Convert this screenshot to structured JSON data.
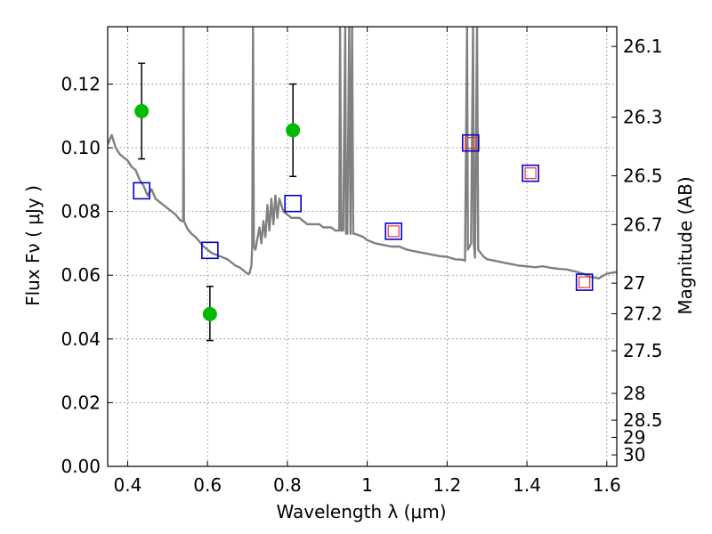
{
  "chart_data": {
    "type": "scatter",
    "xlabel": "Wavelength  λ (μm)",
    "ylabel": "Flux  Fν  ( μJy )",
    "ylabel_right": "Magnitude (AB)",
    "xlim": [
      0.35,
      1.625
    ],
    "ylim": [
      0.0,
      0.138
    ],
    "grid": true,
    "x_ticks": [
      0.4,
      0.6,
      0.8,
      1.0,
      1.2,
      1.4,
      1.6
    ],
    "x_tick_labels": [
      "0.4",
      "0.6",
      "0.8",
      "1",
      "1.2",
      "1.4",
      "1.6"
    ],
    "y_ticks": [
      0.0,
      0.02,
      0.04,
      0.06,
      0.08,
      0.1,
      0.12
    ],
    "y_tick_labels": [
      "0.00",
      "0.02",
      "0.04",
      "0.06",
      "0.08",
      "0.10",
      "0.12"
    ],
    "mag_ticks": [
      {
        "label": "26.1",
        "flux": 0.1318
      },
      {
        "label": "26.3",
        "flux": 0.1096
      },
      {
        "label": "26.5",
        "flux": 0.0912
      },
      {
        "label": "26.7",
        "flux": 0.0759
      },
      {
        "label": "27",
        "flux": 0.0575
      },
      {
        "label": "27.2",
        "flux": 0.0479
      },
      {
        "label": "27.5",
        "flux": 0.0363
      },
      {
        "label": "28",
        "flux": 0.0229
      },
      {
        "label": "28.5",
        "flux": 0.0145
      },
      {
        "label": "29",
        "flux": 0.0091
      },
      {
        "label": "30",
        "flux": 0.0036
      }
    ],
    "series": [
      {
        "kind": "model-spectrum",
        "color": "#808080",
        "points": [
          [
            0.35,
            0.101
          ],
          [
            0.36,
            0.104
          ],
          [
            0.37,
            0.1
          ],
          [
            0.38,
            0.098
          ],
          [
            0.39,
            0.097
          ],
          [
            0.4,
            0.096
          ],
          [
            0.41,
            0.094
          ],
          [
            0.42,
            0.093
          ],
          [
            0.43,
            0.09
          ],
          [
            0.44,
            0.088
          ],
          [
            0.45,
            0.085
          ],
          [
            0.46,
            0.087
          ],
          [
            0.47,
            0.084
          ],
          [
            0.48,
            0.083
          ],
          [
            0.49,
            0.082
          ],
          [
            0.5,
            0.081
          ],
          [
            0.51,
            0.08
          ],
          [
            0.52,
            0.079
          ],
          [
            0.53,
            0.0775
          ],
          [
            0.535,
            0.077
          ],
          [
            0.539,
            0.077
          ],
          [
            0.54,
            0.138
          ],
          [
            0.541,
            0.077
          ],
          [
            0.55,
            0.0745
          ],
          [
            0.56,
            0.073
          ],
          [
            0.57,
            0.072
          ],
          [
            0.58,
            0.0705
          ],
          [
            0.59,
            0.069
          ],
          [
            0.6,
            0.068
          ],
          [
            0.61,
            0.067
          ],
          [
            0.62,
            0.0665
          ],
          [
            0.63,
            0.066
          ],
          [
            0.64,
            0.0655
          ],
          [
            0.65,
            0.065
          ],
          [
            0.66,
            0.064
          ],
          [
            0.67,
            0.063
          ],
          [
            0.68,
            0.0625
          ],
          [
            0.69,
            0.0615
          ],
          [
            0.7,
            0.0605
          ],
          [
            0.705,
            0.0605
          ],
          [
            0.71,
            0.063
          ],
          [
            0.712,
            0.069
          ],
          [
            0.714,
            0.138
          ],
          [
            0.716,
            0.069
          ],
          [
            0.72,
            0.068
          ],
          [
            0.73,
            0.075
          ],
          [
            0.735,
            0.07
          ],
          [
            0.74,
            0.077
          ],
          [
            0.745,
            0.072
          ],
          [
            0.75,
            0.082
          ],
          [
            0.755,
            0.074
          ],
          [
            0.76,
            0.084
          ],
          [
            0.765,
            0.076
          ],
          [
            0.77,
            0.085
          ],
          [
            0.775,
            0.078
          ],
          [
            0.78,
            0.084
          ],
          [
            0.79,
            0.08
          ],
          [
            0.8,
            0.079
          ],
          [
            0.81,
            0.078
          ],
          [
            0.82,
            0.078
          ],
          [
            0.83,
            0.078
          ],
          [
            0.84,
            0.077
          ],
          [
            0.85,
            0.076
          ],
          [
            0.86,
            0.076
          ],
          [
            0.87,
            0.076
          ],
          [
            0.88,
            0.076
          ],
          [
            0.89,
            0.075
          ],
          [
            0.9,
            0.075
          ],
          [
            0.91,
            0.075
          ],
          [
            0.92,
            0.074
          ],
          [
            0.93,
            0.074
          ],
          [
            0.932,
            0.138
          ],
          [
            0.935,
            0.074
          ],
          [
            0.94,
            0.074
          ],
          [
            0.945,
            0.138
          ],
          [
            0.947,
            0.073
          ],
          [
            0.95,
            0.073
          ],
          [
            0.955,
            0.138
          ],
          [
            0.958,
            0.073
          ],
          [
            0.962,
            0.138
          ],
          [
            0.965,
            0.073
          ],
          [
            0.97,
            0.073
          ],
          [
            0.98,
            0.0725
          ],
          [
            0.99,
            0.072
          ],
          [
            1.0,
            0.071
          ],
          [
            1.02,
            0.07
          ],
          [
            1.04,
            0.0695
          ],
          [
            1.06,
            0.069
          ],
          [
            1.08,
            0.069
          ],
          [
            1.1,
            0.068
          ],
          [
            1.12,
            0.0675
          ],
          [
            1.14,
            0.067
          ],
          [
            1.16,
            0.0665
          ],
          [
            1.18,
            0.066
          ],
          [
            1.2,
            0.0658
          ],
          [
            1.22,
            0.065
          ],
          [
            1.24,
            0.0648
          ],
          [
            1.245,
            0.0645
          ],
          [
            1.25,
            0.138
          ],
          [
            1.252,
            0.068
          ],
          [
            1.26,
            0.07
          ],
          [
            1.265,
            0.138
          ],
          [
            1.267,
            0.07
          ],
          [
            1.27,
            0.0655
          ],
          [
            1.275,
            0.138
          ],
          [
            1.278,
            0.068
          ],
          [
            1.29,
            0.066
          ],
          [
            1.3,
            0.065
          ],
          [
            1.32,
            0.0645
          ],
          [
            1.34,
            0.064
          ],
          [
            1.36,
            0.0635
          ],
          [
            1.38,
            0.063
          ],
          [
            1.4,
            0.0628
          ],
          [
            1.42,
            0.0625
          ],
          [
            1.44,
            0.0628
          ],
          [
            1.46,
            0.0623
          ],
          [
            1.48,
            0.062
          ],
          [
            1.5,
            0.0618
          ],
          [
            1.52,
            0.0612
          ],
          [
            1.54,
            0.0605
          ],
          [
            1.56,
            0.0595
          ],
          [
            1.58,
            0.059
          ],
          [
            1.6,
            0.0605
          ],
          [
            1.625,
            0.061
          ]
        ]
      },
      {
        "kind": "observed",
        "color": "#00bb00",
        "points": [
          {
            "x": 0.435,
            "y": 0.1115,
            "yerr_low": 0.0965,
            "yerr_high": 0.1265
          },
          {
            "x": 0.606,
            "y": 0.0478,
            "yerr_low": 0.0395,
            "yerr_high": 0.0565
          },
          {
            "x": 0.814,
            "y": 0.1055,
            "yerr_low": 0.091,
            "yerr_high": 0.12
          }
        ]
      },
      {
        "kind": "model-photometry",
        "color": "#0000cc",
        "points": [
          {
            "x": 0.435,
            "y": 0.0865
          },
          {
            "x": 0.606,
            "y": 0.0678
          },
          {
            "x": 0.814,
            "y": 0.0825
          },
          {
            "x": 1.066,
            "y": 0.0738
          },
          {
            "x": 1.259,
            "y": 0.1015
          },
          {
            "x": 1.409,
            "y": 0.092
          },
          {
            "x": 1.544,
            "y": 0.0578
          }
        ]
      },
      {
        "kind": "model-photometry-inner",
        "color": "#ee3333",
        "points": [
          {
            "x": 1.066,
            "y": 0.0738
          },
          {
            "x": 1.259,
            "y": 0.1015
          },
          {
            "x": 1.409,
            "y": 0.092
          },
          {
            "x": 1.544,
            "y": 0.0578
          }
        ]
      }
    ]
  }
}
